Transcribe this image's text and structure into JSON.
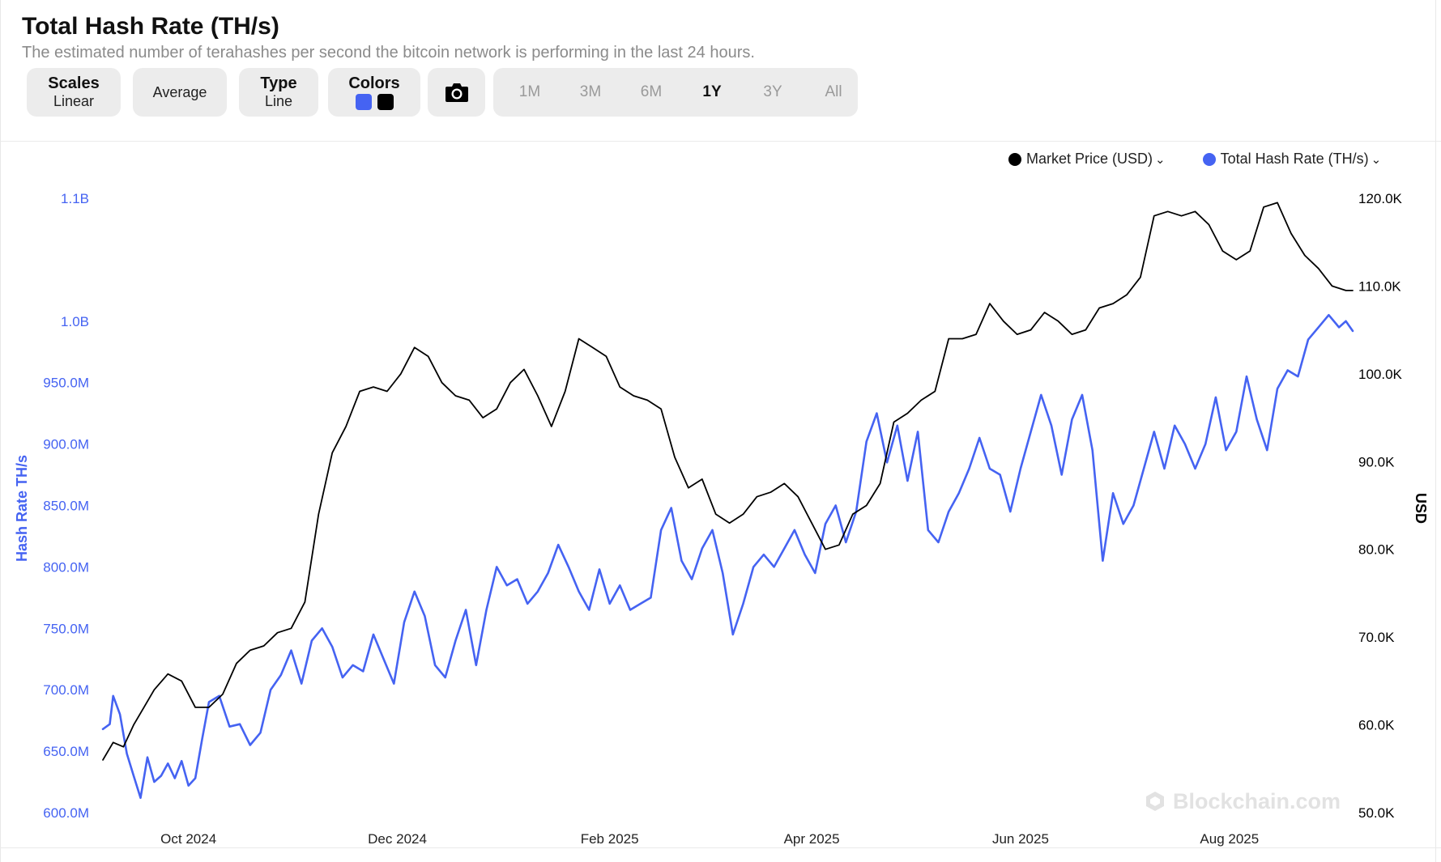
{
  "header": {
    "title": "Total Hash Rate (TH/s)",
    "subtitle": "The estimated number of terahashes per second the bitcoin network is performing in the last 24 hours."
  },
  "toolbar": {
    "scales_label": "Scales",
    "scales_value": "Linear",
    "average_label": "Average",
    "type_label": "Type",
    "type_value": "Line",
    "colors_label": "Colors",
    "colors": [
      "#4563f2",
      "#000000"
    ],
    "camera_icon": "camera-icon",
    "ranges": [
      "1M",
      "3M",
      "6M",
      "1Y",
      "3Y",
      "All"
    ],
    "active_range": "1Y"
  },
  "legend": {
    "items": [
      {
        "label": "Market Price (USD)",
        "color": "#000000"
      },
      {
        "label": "Total Hash Rate (TH/s)",
        "color": "#4563f2"
      }
    ],
    "chevron_icon": "chevron-down-icon"
  },
  "watermark": "Blockchain.com",
  "chart_data": {
    "type": "line",
    "title": "Total Hash Rate (TH/s)",
    "x_tick_labels": [
      "Oct 2024",
      "Dec 2024",
      "Feb 2025",
      "Apr 2025",
      "Jun 2025",
      "Aug 2025"
    ],
    "x_tick_dates": [
      "2024-10-01",
      "2024-12-01",
      "2025-02-01",
      "2025-04-01",
      "2025-06-01",
      "2025-08-01"
    ],
    "x_range": [
      "2024-09-06",
      "2025-09-06"
    ],
    "left_axis": {
      "label": "Hash Rate TH/s",
      "range": [
        600000000,
        1100000000
      ],
      "ticks": [
        600000000,
        650000000,
        700000000,
        750000000,
        800000000,
        850000000,
        900000000,
        950000000,
        1000000000,
        1050000000,
        1100000000
      ],
      "tick_labels": [
        "600.0M",
        "650.0M",
        "700.0M",
        "750.0M",
        "800.0M",
        "850.0M",
        "900.0M",
        "950.0M",
        "1.0B",
        "",
        "1.1B"
      ],
      "color": "#4563f2"
    },
    "right_axis": {
      "label": "USD",
      "range": [
        50000,
        120000
      ],
      "ticks": [
        50000,
        60000,
        70000,
        80000,
        90000,
        100000,
        110000,
        120000
      ],
      "tick_labels": [
        "50.0K",
        "60.0K",
        "70.0K",
        "80.0K",
        "90.0K",
        "100.0K",
        "110.0K",
        "120.0K"
      ],
      "color": "#000000"
    },
    "grid": false,
    "legend_position": "top-right",
    "series": [
      {
        "name": "Total Hash Rate (TH/s)",
        "axis": "left",
        "color": "#4563f2",
        "x": [
          "2024-09-06",
          "2024-09-08",
          "2024-09-09",
          "2024-09-11",
          "2024-09-13",
          "2024-09-15",
          "2024-09-17",
          "2024-09-19",
          "2024-09-21",
          "2024-09-23",
          "2024-09-25",
          "2024-09-27",
          "2024-09-29",
          "2024-10-01",
          "2024-10-03",
          "2024-10-05",
          "2024-10-07",
          "2024-10-10",
          "2024-10-13",
          "2024-10-16",
          "2024-10-19",
          "2024-10-22",
          "2024-10-25",
          "2024-10-28",
          "2024-10-31",
          "2024-11-03",
          "2024-11-06",
          "2024-11-09",
          "2024-11-12",
          "2024-11-15",
          "2024-11-18",
          "2024-11-21",
          "2024-11-24",
          "2024-11-27",
          "2024-11-30",
          "2024-12-03",
          "2024-12-06",
          "2024-12-09",
          "2024-12-12",
          "2024-12-15",
          "2024-12-18",
          "2024-12-21",
          "2024-12-24",
          "2024-12-27",
          "2024-12-30",
          "2025-01-02",
          "2025-01-05",
          "2025-01-08",
          "2025-01-11",
          "2025-01-14",
          "2025-01-17",
          "2025-01-20",
          "2025-01-23",
          "2025-01-26",
          "2025-01-29",
          "2025-02-01",
          "2025-02-04",
          "2025-02-07",
          "2025-02-10",
          "2025-02-13",
          "2025-02-16",
          "2025-02-19",
          "2025-02-22",
          "2025-02-25",
          "2025-02-28",
          "2025-03-03",
          "2025-03-06",
          "2025-03-09",
          "2025-03-12",
          "2025-03-15",
          "2025-03-18",
          "2025-03-21",
          "2025-03-24",
          "2025-03-27",
          "2025-03-30",
          "2025-04-02",
          "2025-04-05",
          "2025-04-08",
          "2025-04-11",
          "2025-04-14",
          "2025-04-17",
          "2025-04-20",
          "2025-04-23",
          "2025-04-26",
          "2025-04-29",
          "2025-05-02",
          "2025-05-05",
          "2025-05-08",
          "2025-05-11",
          "2025-05-14",
          "2025-05-17",
          "2025-05-20",
          "2025-05-23",
          "2025-05-26",
          "2025-05-29",
          "2025-06-01",
          "2025-06-04",
          "2025-06-07",
          "2025-06-10",
          "2025-06-13",
          "2025-06-16",
          "2025-06-19",
          "2025-06-22",
          "2025-06-25",
          "2025-06-28",
          "2025-07-01",
          "2025-07-04",
          "2025-07-07",
          "2025-07-10",
          "2025-07-13",
          "2025-07-16",
          "2025-07-19",
          "2025-07-22",
          "2025-07-25",
          "2025-07-28",
          "2025-07-31",
          "2025-08-03",
          "2025-08-06",
          "2025-08-09",
          "2025-08-12",
          "2025-08-15",
          "2025-08-18",
          "2025-08-21",
          "2025-08-24",
          "2025-08-27",
          "2025-08-30",
          "2025-09-02",
          "2025-09-04",
          "2025-09-06"
        ],
        "y": [
          668000000,
          672000000,
          695000000,
          680000000,
          648000000,
          630000000,
          612000000,
          645000000,
          625000000,
          630000000,
          640000000,
          628000000,
          642000000,
          622000000,
          628000000,
          660000000,
          690000000,
          695000000,
          670000000,
          672000000,
          655000000,
          665000000,
          700000000,
          712000000,
          732000000,
          705000000,
          740000000,
          750000000,
          735000000,
          710000000,
          720000000,
          715000000,
          745000000,
          725000000,
          705000000,
          755000000,
          780000000,
          760000000,
          720000000,
          710000000,
          740000000,
          765000000,
          720000000,
          765000000,
          800000000,
          785000000,
          790000000,
          770000000,
          780000000,
          795000000,
          818000000,
          800000000,
          780000000,
          765000000,
          798000000,
          770000000,
          785000000,
          765000000,
          770000000,
          775000000,
          830000000,
          848000000,
          805000000,
          790000000,
          815000000,
          830000000,
          795000000,
          745000000,
          770000000,
          800000000,
          810000000,
          800000000,
          815000000,
          830000000,
          810000000,
          795000000,
          835000000,
          850000000,
          820000000,
          845000000,
          902000000,
          925000000,
          885000000,
          915000000,
          870000000,
          910000000,
          830000000,
          820000000,
          845000000,
          860000000,
          880000000,
          905000000,
          880000000,
          875000000,
          845000000,
          880000000,
          910000000,
          940000000,
          915000000,
          875000000,
          920000000,
          940000000,
          895000000,
          805000000,
          860000000,
          835000000,
          850000000,
          880000000,
          910000000,
          880000000,
          915000000,
          900000000,
          880000000,
          900000000,
          938000000,
          895000000,
          910000000,
          955000000,
          920000000,
          895000000,
          945000000,
          960000000,
          955000000,
          985000000,
          995000000,
          1005000000,
          995000000,
          1000000000,
          992000000
        ]
      },
      {
        "name": "Market Price (USD)",
        "axis": "right",
        "color": "#000000",
        "x": [
          "2024-09-06",
          "2024-09-09",
          "2024-09-12",
          "2024-09-15",
          "2024-09-18",
          "2024-09-21",
          "2024-09-25",
          "2024-09-29",
          "2024-10-03",
          "2024-10-07",
          "2024-10-11",
          "2024-10-15",
          "2024-10-19",
          "2024-10-23",
          "2024-10-27",
          "2024-10-31",
          "2024-11-04",
          "2024-11-08",
          "2024-11-12",
          "2024-11-16",
          "2024-11-20",
          "2024-11-24",
          "2024-11-28",
          "2024-12-02",
          "2024-12-06",
          "2024-12-10",
          "2024-12-14",
          "2024-12-18",
          "2024-12-22",
          "2024-12-26",
          "2024-12-30",
          "2025-01-03",
          "2025-01-07",
          "2025-01-11",
          "2025-01-15",
          "2025-01-19",
          "2025-01-23",
          "2025-01-27",
          "2025-01-31",
          "2025-02-04",
          "2025-02-08",
          "2025-02-12",
          "2025-02-16",
          "2025-02-20",
          "2025-02-24",
          "2025-02-28",
          "2025-03-04",
          "2025-03-08",
          "2025-03-12",
          "2025-03-16",
          "2025-03-20",
          "2025-03-24",
          "2025-03-28",
          "2025-04-01",
          "2025-04-05",
          "2025-04-09",
          "2025-04-13",
          "2025-04-17",
          "2025-04-21",
          "2025-04-25",
          "2025-04-29",
          "2025-05-03",
          "2025-05-07",
          "2025-05-11",
          "2025-05-15",
          "2025-05-19",
          "2025-05-23",
          "2025-05-27",
          "2025-05-31",
          "2025-06-04",
          "2025-06-08",
          "2025-06-12",
          "2025-06-16",
          "2025-06-20",
          "2025-06-24",
          "2025-06-28",
          "2025-07-02",
          "2025-07-06",
          "2025-07-10",
          "2025-07-14",
          "2025-07-18",
          "2025-07-22",
          "2025-07-26",
          "2025-07-30",
          "2025-08-03",
          "2025-08-07",
          "2025-08-11",
          "2025-08-15",
          "2025-08-19",
          "2025-08-23",
          "2025-08-27",
          "2025-08-31",
          "2025-09-04",
          "2025-09-06"
        ],
        "y": [
          56000,
          58000,
          57500,
          60000,
          62000,
          64000,
          65800,
          65000,
          62000,
          62000,
          63500,
          67000,
          68500,
          69000,
          70500,
          71000,
          74000,
          84000,
          91000,
          94000,
          98000,
          98500,
          98000,
          100000,
          103000,
          102000,
          99000,
          97500,
          97000,
          95000,
          96000,
          99000,
          100500,
          97500,
          94000,
          98000,
          104000,
          103000,
          102000,
          98500,
          97500,
          97000,
          96000,
          90500,
          87000,
          88000,
          84000,
          83000,
          84000,
          86000,
          86500,
          87500,
          86000,
          83000,
          80000,
          80500,
          84000,
          85000,
          87500,
          94500,
          95500,
          97000,
          98000,
          104000,
          104000,
          104500,
          108000,
          106000,
          104500,
          105000,
          107000,
          106000,
          104500,
          105000,
          107500,
          108000,
          109000,
          111000,
          118000,
          118500,
          118000,
          118500,
          117000,
          114000,
          113000,
          114000,
          119000,
          119500,
          116000,
          113500,
          112000,
          110000,
          109500,
          109500
        ]
      }
    ]
  }
}
